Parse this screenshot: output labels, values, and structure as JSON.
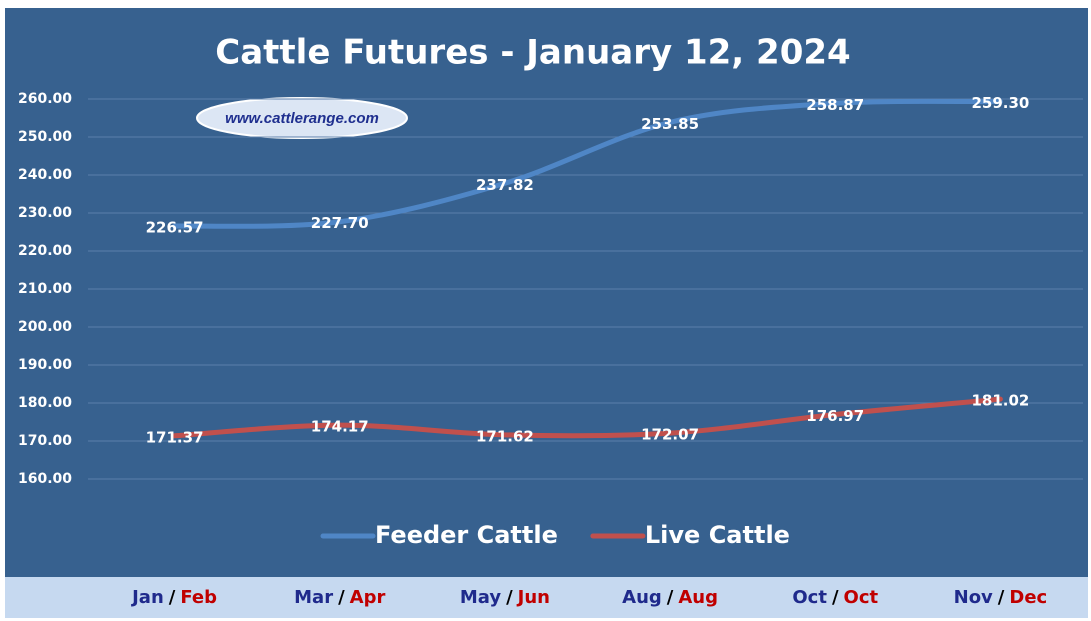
{
  "chart_data": {
    "type": "line",
    "title": "Cattle Futures - January 12, 2024",
    "watermark": "www.cattlerange.com",
    "categories": [
      [
        "Jan",
        "Feb"
      ],
      [
        "Mar",
        "Apr"
      ],
      [
        "May",
        "Jun"
      ],
      [
        "Aug",
        "Aug"
      ],
      [
        "Oct",
        "Oct"
      ],
      [
        "Nov",
        "Dec"
      ]
    ],
    "category_separator": "/",
    "series": [
      {
        "name": "Feeder Cattle",
        "color": "#4f86c6",
        "label_color": "#1f2a8c",
        "values": [
          226.57,
          227.7,
          237.82,
          253.85,
          258.87,
          259.3
        ],
        "value_labels": [
          "226.57",
          "227.70",
          "237.82",
          "253.85",
          "258.87",
          "259.30"
        ]
      },
      {
        "name": "Live Cattle",
        "color": "#c0504d",
        "label_color": "#c00000",
        "values": [
          171.37,
          174.17,
          171.62,
          172.07,
          176.97,
          181.02
        ],
        "value_labels": [
          "171.37",
          "174.17",
          "171.62",
          "172.07",
          "176.97",
          "181.02"
        ]
      }
    ],
    "ylim": [
      160,
      260
    ],
    "yticks": [
      {
        "value": 160,
        "label": "160.00"
      },
      {
        "value": 170,
        "label": "170.00"
      },
      {
        "value": 180,
        "label": "180.00"
      },
      {
        "value": 190,
        "label": "190.00"
      },
      {
        "value": 200,
        "label": "200.00"
      },
      {
        "value": 210,
        "label": "210.00"
      },
      {
        "value": 220,
        "label": "220.00"
      },
      {
        "value": 230,
        "label": "230.00"
      },
      {
        "value": 240,
        "label": "240.00"
      },
      {
        "value": 250,
        "label": "250.00"
      },
      {
        "value": 260,
        "label": "260.00"
      }
    ],
    "grid": true,
    "legend": "bottom"
  }
}
